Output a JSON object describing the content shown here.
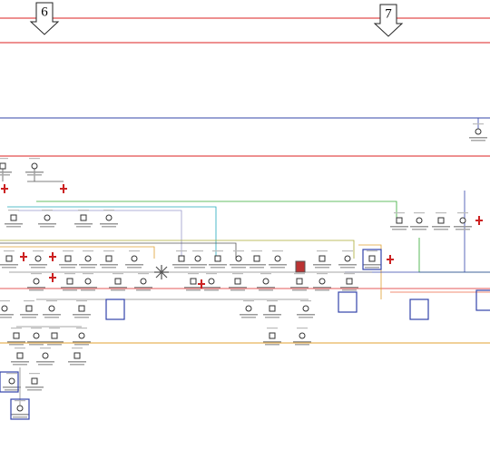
{
  "markers": [
    {
      "label": "6"
    },
    {
      "label": "7"
    }
  ]
}
